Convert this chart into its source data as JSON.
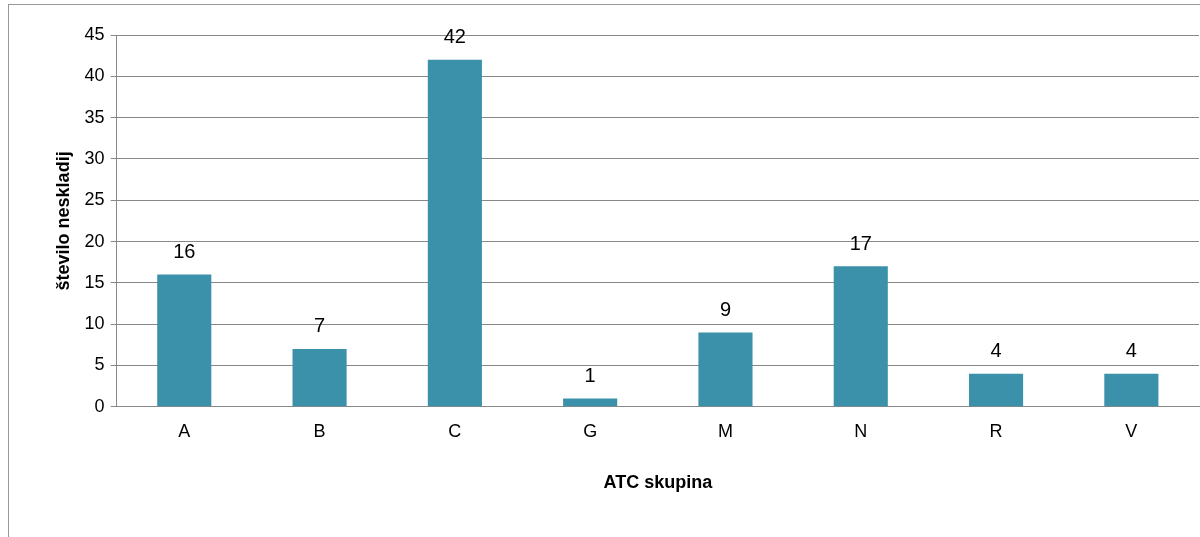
{
  "chart_data": {
    "type": "bar",
    "xlabel": "ATC skupina",
    "ylabel": "število neskladij",
    "categories": [
      "A",
      "B",
      "C",
      "G",
      "M",
      "N",
      "R",
      "V"
    ],
    "values": [
      16,
      7,
      42,
      1,
      9,
      17,
      4,
      4
    ],
    "color": "#3a91a9",
    "ylim": [
      0,
      45
    ],
    "yticks": [
      0,
      5,
      10,
      15,
      20,
      25,
      30,
      35,
      40,
      45
    ],
    "grid": "y",
    "data_labels": true,
    "legend": false
  }
}
